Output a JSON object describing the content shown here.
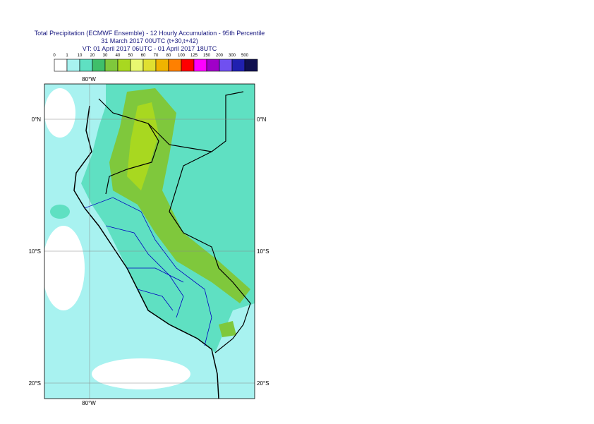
{
  "header": {
    "title_lines": [
      "Total Precipitation (ECMWF Ensemble) - 12 Hourly Accumulation - 95th Percentile",
      "31 March 2017 00UTC (t+30,t+42)",
      "VT: 01 April 2017 06UTC - 01 April 2017 18UTC"
    ]
  },
  "legend": {
    "labels": [
      "0",
      "1",
      "10",
      "20",
      "30",
      "40",
      "50",
      "60",
      "70",
      "80",
      "100",
      "125",
      "150",
      "200",
      "300",
      "500"
    ],
    "colors": [
      "#ffffff",
      "#a8f2f0",
      "#5fe0c2",
      "#3fbf6a",
      "#7fc83c",
      "#a8d820",
      "#e8f870",
      "#e0e030",
      "#f0b400",
      "#ff8000",
      "#ff0000",
      "#ff00ff",
      "#a000c8",
      "#7050f0",
      "#2020b0",
      "#101050"
    ]
  },
  "map": {
    "top_label": "80°W",
    "bottom_label": "80°W",
    "left_labels": [
      "0°N",
      "10°S",
      "20°S"
    ],
    "right_labels": [
      "0°N",
      "10°S",
      "20°S"
    ]
  }
}
